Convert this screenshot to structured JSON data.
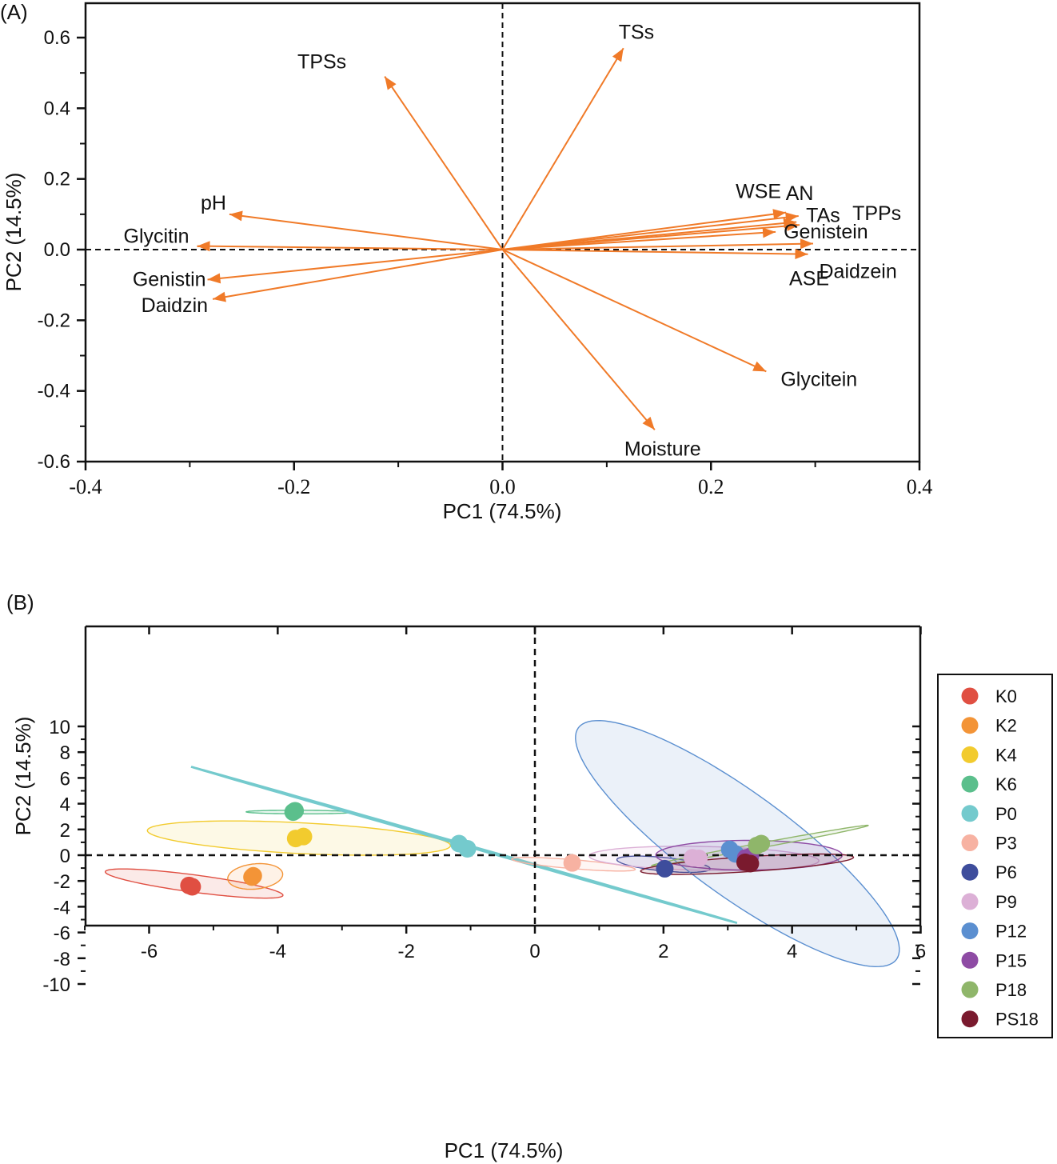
{
  "chart_data": [
    {
      "panel": "(A)",
      "type": "scatter",
      "subtype": "loading-plot-vectors",
      "xlabel": "PC1 (74.5%)",
      "ylabel": "PC2 (14.5%)",
      "xlim": [
        -0.4,
        0.4
      ],
      "ylim": [
        -0.6,
        0.6
      ],
      "xticks": [
        "-0.4",
        "-0.2",
        "0.0",
        "0.2",
        "0.4"
      ],
      "yticks": [
        "0.6",
        "0.4",
        "0.2",
        "0.0",
        "-0.2",
        "-0.4",
        "-0.6"
      ],
      "xtick_values": [
        -0.4,
        -0.2,
        0.0,
        0.2,
        0.4
      ],
      "ytick_values": [
        0.6,
        0.4,
        0.2,
        0.0,
        -0.2,
        -0.4,
        -0.6
      ],
      "reference_lines": {
        "x": 0,
        "y": 0,
        "style": "dashed"
      },
      "arrow_color": "#f07a28",
      "vectors": [
        {
          "name": "TSs",
          "x": 0.116,
          "y": 0.57
        },
        {
          "name": "TPSs",
          "x": -0.113,
          "y": 0.49
        },
        {
          "name": "pH",
          "x": -0.262,
          "y": 0.1
        },
        {
          "name": "Glycitin",
          "x": -0.293,
          "y": 0.01
        },
        {
          "name": "Genistin",
          "x": -0.283,
          "y": -0.085
        },
        {
          "name": "Daidzin",
          "x": -0.278,
          "y": -0.14
        },
        {
          "name": "WSE",
          "x": 0.272,
          "y": 0.105
        },
        {
          "name": "AN",
          "x": 0.284,
          "y": 0.095
        },
        {
          "name": "TAs",
          "x": 0.282,
          "y": 0.078
        },
        {
          "name": "TPPs",
          "x": 0.285,
          "y": 0.07
        },
        {
          "name": "Genistein",
          "x": 0.262,
          "y": 0.05
        },
        {
          "name": "ASE",
          "x": 0.298,
          "y": 0.017
        },
        {
          "name": "Daidzein",
          "x": 0.293,
          "y": -0.013
        },
        {
          "name": "Glycitein",
          "x": 0.253,
          "y": -0.345
        },
        {
          "name": "Moisture",
          "x": 0.146,
          "y": -0.51
        }
      ]
    },
    {
      "panel": "(B)",
      "type": "scatter",
      "subtype": "score-plot-with-confidence-ellipses",
      "xlabel": "PC1 (74.5%)",
      "ylabel": "PC2 (14.5%)",
      "xlim": [
        -7,
        6
      ],
      "ylim": [
        -11,
        11
      ],
      "xticks": [
        "-6",
        "-4",
        "-2",
        "0",
        "2",
        "4",
        "6"
      ],
      "yticks": [
        "10",
        "8",
        "6",
        "4",
        "2",
        "0",
        "-2",
        "-4",
        "-6",
        "-8",
        "-10"
      ],
      "xtick_values": [
        -6,
        -4,
        -2,
        0,
        2,
        4,
        6
      ],
      "ytick_values": [
        10,
        8,
        6,
        4,
        2,
        0,
        -2,
        -4,
        -6,
        -8,
        -10
      ],
      "reference_lines": {
        "x": 0,
        "y": 0,
        "style": "dashed"
      },
      "legend_position": "right",
      "series": [
        {
          "name": "K0",
          "color": "#e04f42",
          "points": [
            [
              -5.38,
              -2.35
            ],
            [
              -5.33,
              -2.45
            ]
          ],
          "ellipse": {
            "cx": -5.3,
            "cy": -2.2,
            "rx": 1.7,
            "ry": 0.55,
            "angle_deg": -38
          }
        },
        {
          "name": "K2",
          "color": "#f39437",
          "points": [
            [
              -4.38,
              -1.6
            ],
            [
              -4.4,
              -1.7
            ]
          ],
          "ellipse": {
            "cx": -4.35,
            "cy": -1.65,
            "rx": 0.42,
            "ry": 1.0,
            "angle_deg": -5
          }
        },
        {
          "name": "K4",
          "color": "#f2cb2e",
          "points": [
            [
              -3.72,
              1.3
            ],
            [
              -3.6,
              1.45
            ]
          ],
          "ellipse": {
            "cx": -3.67,
            "cy": 1.33,
            "rx": 2.45,
            "ry": 1.15,
            "angle_deg": -18
          }
        },
        {
          "name": "K6",
          "color": "#5bbf8c",
          "points": [
            [
              -3.76,
              3.35
            ],
            [
              -3.73,
              3.45
            ]
          ],
          "ellipse": {
            "cx": -3.67,
            "cy": 3.35,
            "rx": 0.82,
            "ry": 0.14,
            "angle_deg": -1
          }
        },
        {
          "name": "P0",
          "color": "#74cacd",
          "points": [
            [
              -1.18,
              0.9
            ],
            [
              -1.05,
              0.5
            ]
          ],
          "ellipse": {
            "cx": -1.1,
            "cy": 0.8,
            "rx": 7.4,
            "ry": 0.04,
            "angle_deg": -55
          }
        },
        {
          "name": "P3",
          "color": "#f7b2a2",
          "points": [
            [
              0.58,
              -0.6
            ]
          ],
          "ellipse": {
            "cx": 0.6,
            "cy": -0.7,
            "rx": 1.05,
            "ry": 0.32,
            "angle_deg": -25
          }
        },
        {
          "name": "P6",
          "color": "#3e4d9c",
          "points": [
            [
              2.02,
              -1.05
            ]
          ],
          "ellipse": {
            "cx": 2.0,
            "cy": -0.7,
            "rx": 0.85,
            "ry": 0.45,
            "angle_deg": -38
          }
        },
        {
          "name": "P9",
          "color": "#dcb0d6",
          "points": [
            [
              2.45,
              -0.2
            ],
            [
              2.55,
              -0.25
            ]
          ],
          "ellipse": {
            "cx": 2.63,
            "cy": -0.25,
            "rx": 1.8,
            "ry": 0.92,
            "angle_deg": -8
          }
        },
        {
          "name": "P12",
          "color": "#5b8fd0",
          "points": [
            [
              3.03,
              0.45
            ],
            [
              3.12,
              0.1
            ]
          ],
          "ellipse": {
            "cx": 3.15,
            "cy": 0.9,
            "rx": 1.25,
            "ry": 9.8,
            "angle_deg": 13
          }
        },
        {
          "name": "P15",
          "color": "#8e4ba4",
          "points": [
            [
              3.35,
              -0.1
            ],
            [
              3.28,
              -0.2
            ]
          ],
          "ellipse": {
            "cx": 3.33,
            "cy": 0.0,
            "rx": 1.45,
            "ry": 1.15,
            "angle_deg": 0
          }
        },
        {
          "name": "P18",
          "color": "#8fb66a",
          "points": [
            [
              3.52,
              0.9
            ],
            [
              3.45,
              0.75
            ]
          ],
          "ellipse": {
            "cx": 3.5,
            "cy": 0.75,
            "rx": 2.3,
            "ry": 0.14,
            "angle_deg": 43
          }
        },
        {
          "name": "PS18",
          "color": "#7a1a2e",
          "points": [
            [
              3.27,
              -0.55
            ],
            [
              3.35,
              -0.65
            ]
          ],
          "ellipse": {
            "cx": 3.3,
            "cy": -0.7,
            "rx": 1.75,
            "ry": 0.55,
            "angle_deg": 20
          }
        }
      ]
    }
  ]
}
